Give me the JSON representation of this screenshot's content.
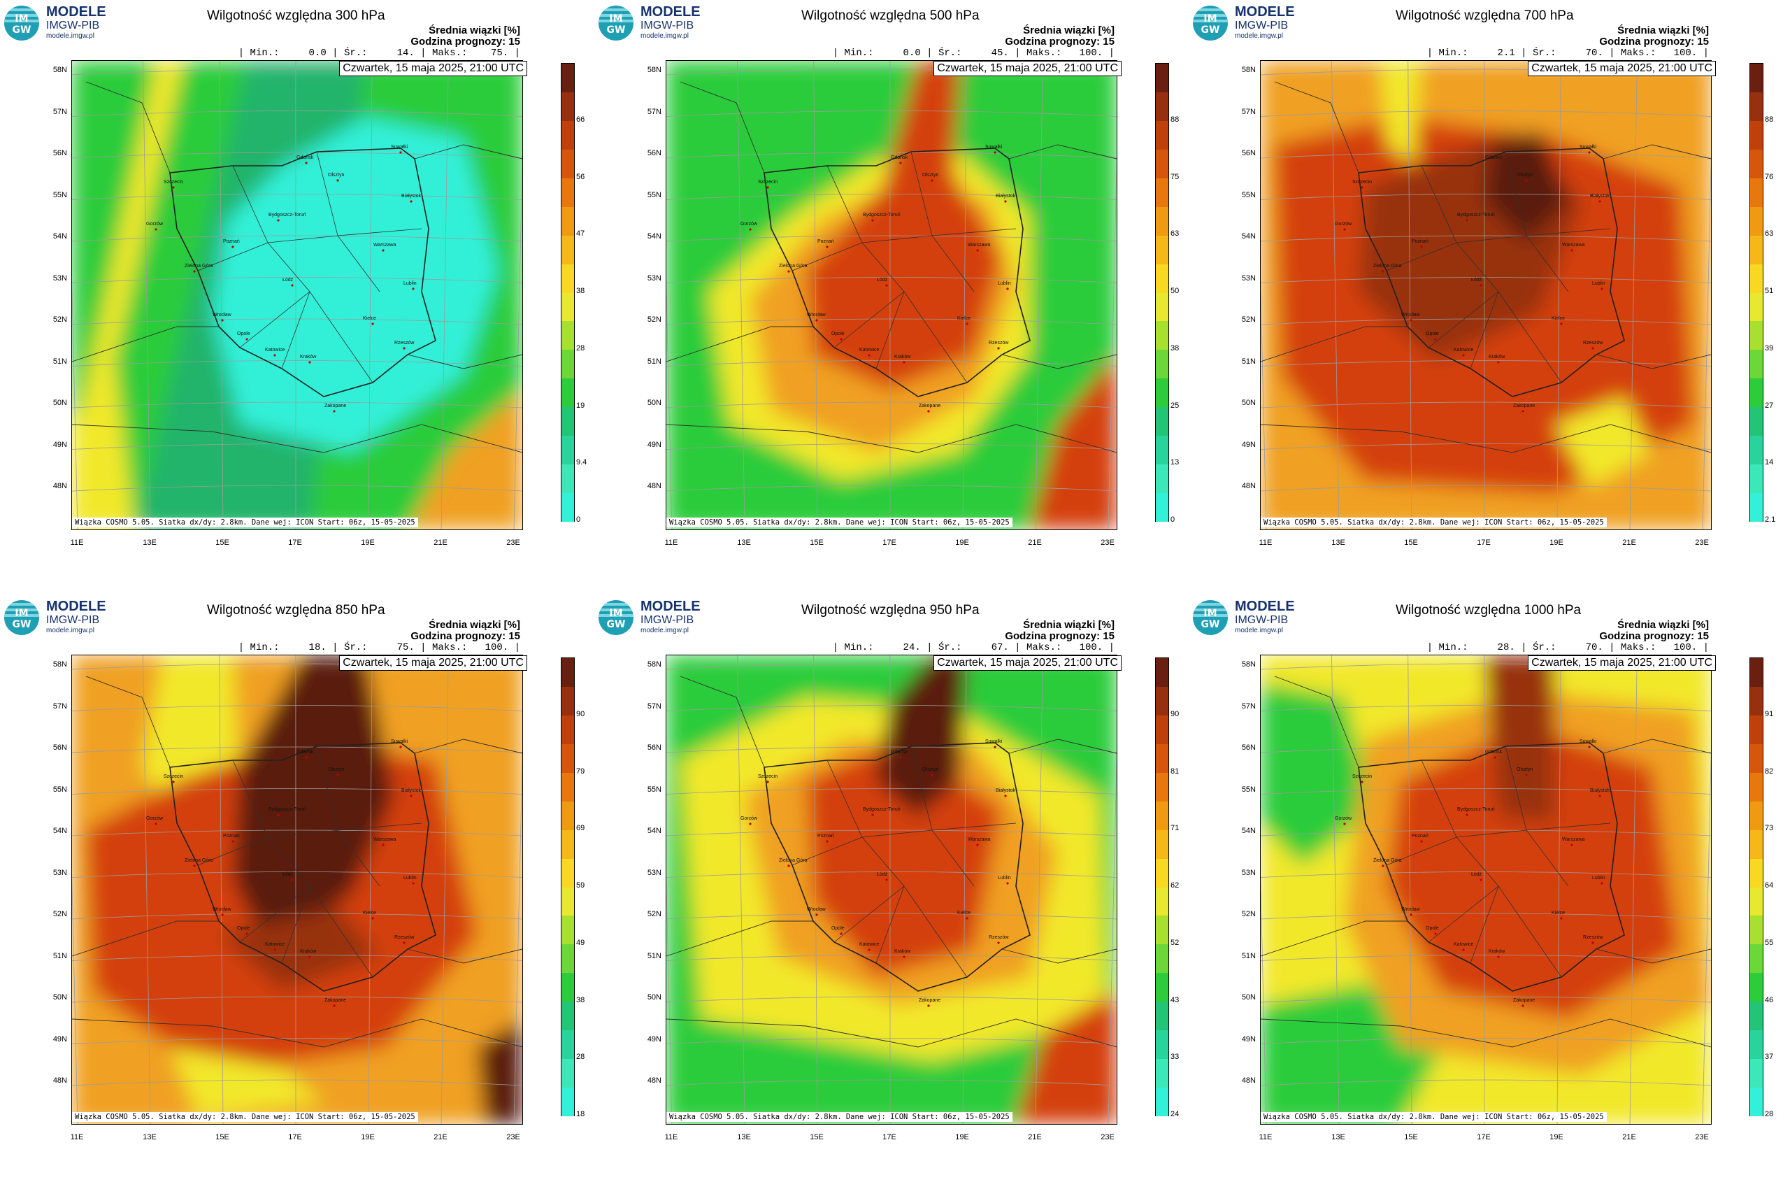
{
  "logo": {
    "line1": "MODELE",
    "line2": "IMGW-PIB",
    "line3": "modele.imgw.pl",
    "mark_top": "IM",
    "mark_bottom": "GW"
  },
  "common": {
    "legend_header": "Średnia wiązki [%]",
    "forecast_hour": "Godzina prognozy: 15",
    "date": "Czwartek, 15 maja 2025, 21:00 UTC",
    "footer": "Wiązka COSMO 5.05. Siatka dx/dy: 2.8km. Dane wej: ICON Start: 06z, 15-05-2025",
    "lat_labels": [
      "58N",
      "57N",
      "56N",
      "55N",
      "54N",
      "53N",
      "52N",
      "51N",
      "50N",
      "49N",
      "48N"
    ],
    "lon_labels": [
      "11E",
      "13E",
      "15E",
      "17E",
      "19E",
      "21E",
      "23E"
    ]
  },
  "cities": [
    "Gdańsk",
    "Olsztyn",
    "Suwałki",
    "Szczecin",
    "Białystok",
    "Bydgoszcz-Toruń",
    "Gorzów",
    "Warszawa",
    "Poznań",
    "Łódź",
    "Zielona Góra",
    "Lublin",
    "Wrocław",
    "Kielce",
    "Opole",
    "Rzeszów",
    "Katowice",
    "Kraków",
    "Zakopane"
  ],
  "colors": {
    "cyan": "#33f0d8",
    "green": "#2ccc3a",
    "yellow": "#f2e82c",
    "orange": "#f0a020",
    "red": "#d44010",
    "darkred": "#5a1a10"
  },
  "panels": [
    {
      "title": "Wilgotność względna 300 hPa",
      "minmax": "| Min.:     0.0 | Śr.:     14. | Maks.:    75. |",
      "scale": [
        "0",
        "9.4",
        "19",
        "28",
        "38",
        "47",
        "56",
        "66"
      ],
      "map_type": "dry"
    },
    {
      "title": "Wilgotność względna 500 hPa",
      "minmax": "| Min.:     0.0 | Śr.:     45. | Maks.:   100. |",
      "scale": [
        "0",
        "13",
        "25",
        "38",
        "50",
        "63",
        "75",
        "88"
      ],
      "map_type": "medium"
    },
    {
      "title": "Wilgotność względna 700 hPa",
      "minmax": "| Min.:     2.1 | Śr.:     70. | Maks.:   100. |",
      "scale": [
        "2.1",
        "14",
        "27",
        "39",
        "51",
        "63",
        "76",
        "88"
      ],
      "map_type": "wet"
    },
    {
      "title": "Wilgotność względna 850 hPa",
      "minmax": "| Min.:     18. | Śr.:     75. | Maks.:   100. |",
      "scale": [
        "18",
        "28",
        "38",
        "49",
        "59",
        "69",
        "79",
        "90"
      ],
      "map_type": "verywet"
    },
    {
      "title": "Wilgotność względna 950 hPa",
      "minmax": "| Min.:     24. | Śr.:     67. | Maks.:   100. |",
      "scale": [
        "24",
        "33",
        "43",
        "52",
        "62",
        "71",
        "81",
        "90"
      ],
      "map_type": "mixed"
    },
    {
      "title": "Wilgotność względna 1000 hPa",
      "minmax": "| Min.:     28. | Śr.:     70. | Maks.:   100. |",
      "scale": [
        "28",
        "37",
        "46",
        "55",
        "64",
        "73",
        "82",
        "91"
      ],
      "map_type": "mixed2"
    }
  ]
}
